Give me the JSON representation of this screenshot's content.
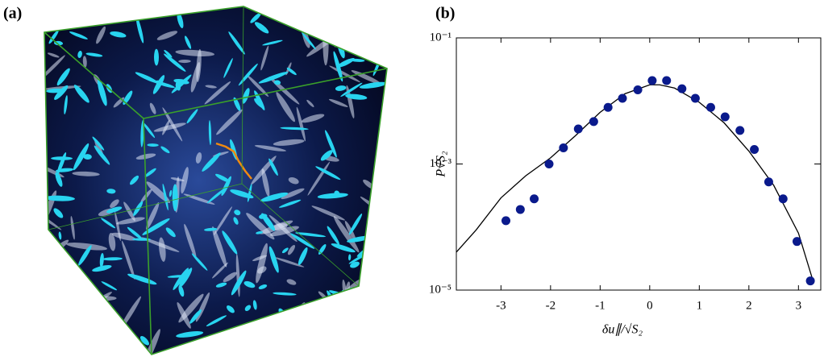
{
  "panel_a": {
    "label": "(a)"
  },
  "chart_data": {
    "type": "scatter",
    "panel_label": "(b)",
    "x_label": "δu∥/√S₂",
    "y_label": "P√S₂",
    "log_y": true,
    "xlim": [
      -3.9,
      3.45
    ],
    "ylim": [
      1e-05,
      0.1
    ],
    "xticks": [
      -3,
      -2,
      -1,
      0,
      1,
      2,
      3
    ],
    "yticks": [
      {
        "value": 0.1,
        "label": "10⁻¹"
      },
      {
        "value": 0.001,
        "label": "10⁻³"
      },
      {
        "value": 1e-05,
        "label": "10⁻⁵"
      }
    ],
    "series": [
      {
        "type": "scatter",
        "color": "#0a1a8c",
        "x": [
          -2.9,
          -2.61,
          -2.33,
          -2.03,
          -1.74,
          -1.44,
          -1.13,
          -0.84,
          -0.55,
          -0.24,
          0.05,
          0.34,
          0.65,
          0.92,
          1.23,
          1.52,
          1.82,
          2.11,
          2.4,
          2.69,
          2.97,
          3.24
        ],
        "values": [
          0.000126,
          0.00019,
          0.00028,
          0.001,
          0.0018,
          0.0036,
          0.0047,
          0.0079,
          0.011,
          0.015,
          0.021,
          0.021,
          0.0156,
          0.011,
          0.0079,
          0.0056,
          0.0034,
          0.0017,
          0.00052,
          0.00028,
          5.9e-05,
          1.4e-05
        ]
      },
      {
        "type": "line",
        "color": "#000000",
        "x": [
          -3.9,
          -3.5,
          -3.0,
          -2.5,
          -2.0,
          -1.5,
          -1.0,
          -0.5,
          0,
          0.2,
          0.5,
          1.0,
          1.5,
          2.0,
          2.5,
          3.0,
          3.3
        ],
        "values": [
          4e-05,
          9e-05,
          0.00029,
          0.00065,
          0.00125,
          0.0028,
          0.0066,
          0.013,
          0.018,
          0.018,
          0.016,
          0.0095,
          0.0045,
          0.0016,
          0.00046,
          8e-05,
          1.35e-05
        ]
      }
    ]
  }
}
